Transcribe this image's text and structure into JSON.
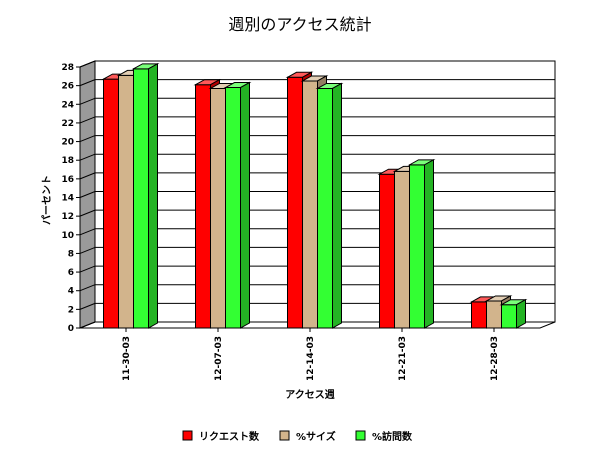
{
  "chart_data": {
    "type": "bar",
    "title": "週別のアクセス統計",
    "xlabel": "アクセス週",
    "ylabel": "パーセント",
    "categories": [
      "11-30-03",
      "12-07-03",
      "12-14-03",
      "12-21-03",
      "12-28-03"
    ],
    "ylim": [
      0,
      28
    ],
    "yticks": [
      0,
      2,
      4,
      6,
      8,
      10,
      12,
      14,
      16,
      18,
      20,
      22,
      24,
      26,
      28
    ],
    "grid": true,
    "legend_position": "bottom",
    "series": [
      {
        "name": "リクエスト数",
        "values": [
          26.7,
          26.1,
          26.9,
          16.5,
          2.8
        ],
        "color": "#ff0000"
      },
      {
        "name": "%サイズ",
        "values": [
          27.1,
          25.7,
          26.5,
          16.8,
          2.9
        ],
        "color": "#d2b48c"
      },
      {
        "name": "%訪問数",
        "values": [
          27.8,
          25.8,
          25.7,
          17.5,
          2.5
        ],
        "color": "#33ff33"
      }
    ]
  }
}
